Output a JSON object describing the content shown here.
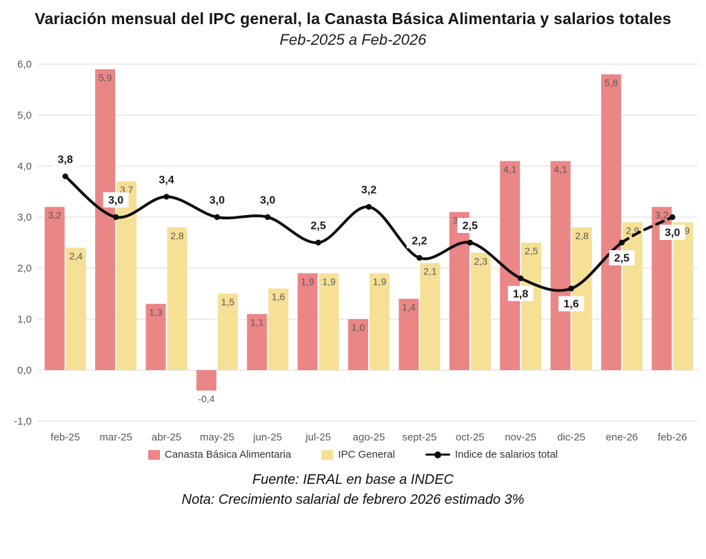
{
  "header": {
    "title": "Variación mensual del IPC general, la Canasta Básica Alimentaria y salarios totales",
    "subtitle": "Feb-2025 a Feb-2026"
  },
  "footer": {
    "source": "Fuente: IERAL en base a INDEC",
    "note": "Nota: Crecimiento salarial de febrero 2026 estimado 3%"
  },
  "colors": {
    "cba_bar": "#EB8686",
    "ipc_bar": "#F6E096",
    "salary_line": "#0D0D0D",
    "grid": "#D9D9D9",
    "axis_text": "#595959",
    "bar_label_text": "#595959",
    "line_label_text": "#1A1A1A",
    "line_label_bg": "#FFFFFF"
  },
  "chart_data": {
    "type": "bar",
    "subtype": "grouped-bars-with-line-overlay",
    "title": "Variación mensual del IPC general, la Canasta Básica Alimentaria y salarios totales",
    "subtitle": "Feb-2025 a Feb-2026",
    "categories": [
      "feb-25",
      "mar-25",
      "abr-25",
      "may-25",
      "jun-25",
      "jul-25",
      "ago-25",
      "sept-25",
      "oct-25",
      "nov-25",
      "dic-25",
      "ene-26",
      "feb-26"
    ],
    "series": [
      {
        "name": "Canasta Básica Alimentaria",
        "type": "bar",
        "color": "#EB8686",
        "values": [
          3.2,
          5.9,
          1.3,
          -0.4,
          1.1,
          1.9,
          1.0,
          1.4,
          3.1,
          4.1,
          4.1,
          5.8,
          3.2
        ],
        "labels": [
          "3,2",
          "5,9",
          "1,3",
          "-0,4",
          "1,1",
          "1,9",
          "1,0",
          "1,4",
          "3,1",
          "4,1",
          "4,1",
          "5,8",
          "3,2"
        ]
      },
      {
        "name": "IPC General",
        "type": "bar",
        "color": "#F6E096",
        "values": [
          2.4,
          3.7,
          2.8,
          1.5,
          1.6,
          1.9,
          1.9,
          2.1,
          2.3,
          2.5,
          2.8,
          2.9,
          2.9
        ],
        "labels": [
          "2,4",
          "3,7",
          "2,8",
          "1,5",
          "1,6",
          "1,9",
          "1,9",
          "2,1",
          "2,3",
          "2,5",
          "2,8",
          "2,9",
          "2,9"
        ]
      },
      {
        "name": "Indice de salarios total",
        "type": "line",
        "color": "#0D0D0D",
        "values": [
          3.8,
          3.0,
          3.4,
          3.0,
          3.0,
          2.5,
          3.2,
          2.2,
          2.5,
          1.8,
          1.6,
          2.5,
          3.0
        ],
        "labels": [
          "3,8",
          "3,0",
          "3,4",
          "3,0",
          "3,0",
          "2,5",
          "3,2",
          "2,2",
          "2,5",
          "1,8",
          "1,6",
          "2,5",
          "3,0"
        ],
        "label_positions": [
          "above",
          "above",
          "above",
          "above",
          "above",
          "above",
          "above",
          "above",
          "above",
          "below",
          "below",
          "below",
          "below"
        ],
        "dashed_from_index": 11
      }
    ],
    "y_axis": {
      "min": -1,
      "max": 6,
      "ticks": [
        6,
        5,
        4,
        3,
        2,
        1,
        0,
        -1
      ],
      "tick_labels": [
        "6,0",
        "5,0",
        "4,0",
        "3,0",
        "2,0",
        "1,0",
        "0,0",
        "-1,0"
      ]
    },
    "grid": true,
    "legend_position": "bottom",
    "note": "Nota: Crecimiento salarial de febrero 2026 estimado 3%",
    "source": "Fuente: IERAL en base a INDEC"
  }
}
